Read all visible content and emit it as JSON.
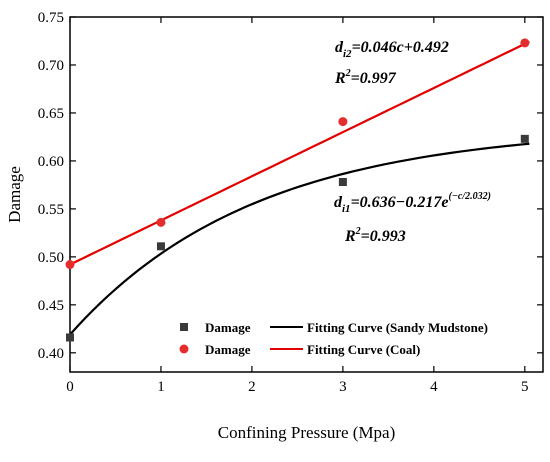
{
  "chart_data": {
    "type": "scatter",
    "xlabel": "Confining Pressure (Mpa)",
    "ylabel": "Damage",
    "xlim": [
      0,
      5.2
    ],
    "ylim": [
      0.38,
      0.75
    ],
    "xticks": [
      "0",
      "1",
      "2",
      "3",
      "4",
      "5"
    ],
    "yticks": [
      "0.40",
      "0.45",
      "0.50",
      "0.55",
      "0.60",
      "0.65",
      "0.70",
      "0.75"
    ],
    "grid": false,
    "legend_position": "bottom-right",
    "colors": {
      "mudstone": "#3a3a3a",
      "coal": "#e52d2d",
      "fit_mudstone": "#000000",
      "fit_coal": "#e50000"
    },
    "series": [
      {
        "name": "Damage",
        "kind": "points",
        "marker": "square",
        "group": "mudstone",
        "x": [
          0,
          1,
          3,
          5
        ],
        "y": [
          0.416,
          0.511,
          0.578,
          0.623
        ]
      },
      {
        "name": "Damage",
        "kind": "points",
        "marker": "circle",
        "group": "coal",
        "x": [
          0,
          1,
          3,
          5
        ],
        "y": [
          0.492,
          0.536,
          0.641,
          0.723
        ]
      },
      {
        "name": "Fitting Curve (Sandy Mudstone)",
        "kind": "curve",
        "group": "fit_mudstone",
        "function": "0.636 - 0.217*exp(-x/2.032)",
        "x_range": [
          0,
          5.05
        ]
      },
      {
        "name": "Fitting Curve (Coal)",
        "kind": "curve",
        "group": "fit_coal",
        "function": "0.046*x + 0.492",
        "x_range": [
          0,
          5.05
        ]
      }
    ],
    "annotations": [
      {
        "label": "d",
        "sub": "i2",
        "equation": "=0.046c+0.492",
        "r2": "=0.997"
      },
      {
        "label": "d",
        "sub": "i1",
        "equation": "=0.636−0.217e",
        "sup": "(−c/2.032)",
        "r2": "=0.993"
      }
    ],
    "r2_label": "R",
    "r2_sup": "2"
  }
}
